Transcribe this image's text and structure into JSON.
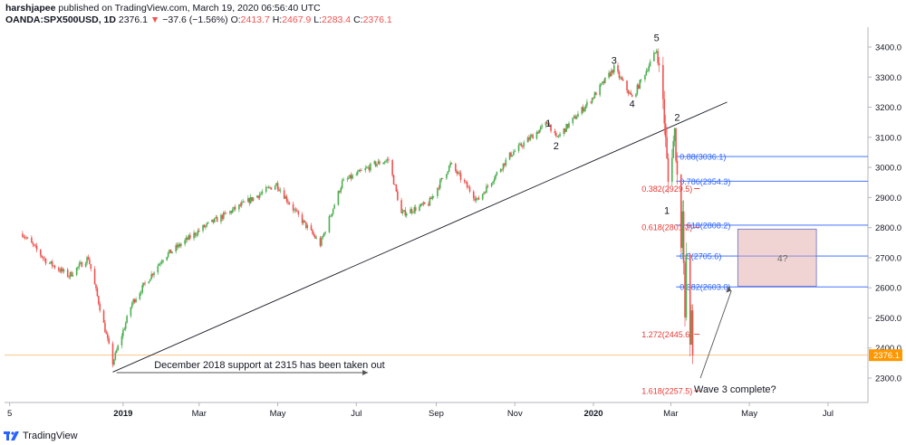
{
  "header": {
    "author": "harshjapee",
    "published_text": "published on TradingView.com, March 19, 2020 06:56:40 UTC",
    "symbol": "OANDA:SPX500USD, 1D",
    "last": "2376.1",
    "change_arrow": "▼",
    "change": "−37.6 (−1.56%)",
    "open_label": "O:",
    "open": "2413.7",
    "high_label": "H:",
    "high": "2467.9",
    "low_label": "L:",
    "low": "2283.4",
    "close_label": "C:",
    "close": "2376.1"
  },
  "footer": {
    "brand": "TradingView"
  },
  "colors": {
    "up": "#26a69a",
    "up_green": "#4caf50",
    "down": "#ef5350",
    "fib_red": "#e53935",
    "fib_blue": "#2962ff",
    "price_tag": "#ff9800"
  },
  "chart_data": {
    "type": "candlestick",
    "y_axis": {
      "min": 2250,
      "max": 3450,
      "ticks": [
        2300,
        2400,
        2500,
        2600,
        2700,
        2800,
        2900,
        3000,
        3100,
        3200,
        3300,
        3400
      ],
      "tick_labels": [
        "2300.0",
        "2400.0",
        "2500.0",
        "2600.0",
        "2700.0",
        "2800.0",
        "2900.0",
        "3000.0",
        "3100.0",
        "3200.0",
        "3300.0",
        "3400.0"
      ]
    },
    "x_axis": {
      "labels": [
        "5",
        "2019",
        "Mar",
        "May",
        "Jul",
        "Sep",
        "Nov",
        "2020",
        "Mar",
        "May",
        "Jul"
      ]
    },
    "anchors": [
      {
        "date": "2018-10-15",
        "price": 2780
      },
      {
        "date": "2018-11-02",
        "price": 2690
      },
      {
        "date": "2018-11-20",
        "price": 2640
      },
      {
        "date": "2018-12-05",
        "price": 2700
      },
      {
        "date": "2018-12-24",
        "price": 2350
      },
      {
        "date": "2019-01-08",
        "price": 2550
      },
      {
        "date": "2019-02-01",
        "price": 2700
      },
      {
        "date": "2019-03-04",
        "price": 2800
      },
      {
        "date": "2019-04-01",
        "price": 2870
      },
      {
        "date": "2019-04-30",
        "price": 2945
      },
      {
        "date": "2019-05-15",
        "price": 2850
      },
      {
        "date": "2019-06-03",
        "price": 2745
      },
      {
        "date": "2019-06-20",
        "price": 2950
      },
      {
        "date": "2019-07-15",
        "price": 3010
      },
      {
        "date": "2019-07-26",
        "price": 3025
      },
      {
        "date": "2019-08-05",
        "price": 2845
      },
      {
        "date": "2019-08-26",
        "price": 2880
      },
      {
        "date": "2019-09-12",
        "price": 3010
      },
      {
        "date": "2019-10-03",
        "price": 2890
      },
      {
        "date": "2019-10-28",
        "price": 3040
      },
      {
        "date": "2019-11-27",
        "price": 3150
      },
      {
        "date": "2019-12-03",
        "price": 3095
      },
      {
        "date": "2019-12-31",
        "price": 3230
      },
      {
        "date": "2020-01-17",
        "price": 3330
      },
      {
        "date": "2020-01-31",
        "price": 3230
      },
      {
        "date": "2020-02-19",
        "price": 3390
      },
      {
        "date": "2020-02-24",
        "price": 3225
      },
      {
        "date": "2020-02-28",
        "price": 2950
      },
      {
        "date": "2020-03-04",
        "price": 3120
      },
      {
        "date": "2020-03-09",
        "price": 2750
      },
      {
        "date": "2020-03-10",
        "price": 2880
      },
      {
        "date": "2020-03-12",
        "price": 2480
      },
      {
        "date": "2020-03-13",
        "price": 2710
      },
      {
        "date": "2020-03-16",
        "price": 2390
      },
      {
        "date": "2020-03-17",
        "price": 2530
      },
      {
        "date": "2020-03-18",
        "price": 2376.1
      }
    ],
    "trendline": {
      "from": {
        "date": "2018-12-24",
        "price": 2320
      },
      "to": {
        "date": "2020-03-18",
        "price": 3205
      }
    },
    "support_line": {
      "price": 2376.1
    },
    "wave_labels": [
      {
        "text": "5",
        "date": "2020-02-19",
        "price": 3420
      },
      {
        "text": "3",
        "date": "2020-01-17",
        "price": 3345
      },
      {
        "text": "4",
        "date": "2020-01-31",
        "price": 3200
      },
      {
        "text": "1",
        "date": "2019-11-27",
        "price": 3135
      },
      {
        "text": "2",
        "date": "2019-12-03",
        "price": 3060
      },
      {
        "text": "2",
        "date": "2020-03-06",
        "price": 3155
      },
      {
        "text": "1",
        "date": "2020-02-27",
        "price": 2845
      }
    ],
    "fib_red": [
      {
        "text": "0.382(2929.5)",
        "price": 2929.5
      },
      {
        "text": "0.618(2801.2)",
        "price": 2801.2
      },
      {
        "text": "1.272(2445.6)",
        "price": 2445.6
      },
      {
        "text": "1.618(2257.5)",
        "price": 2257.5
      }
    ],
    "fib_blue": [
      {
        "text": "0.88(3036.1)",
        "price": 3036.1
      },
      {
        "text": "0.786(2954.3)",
        "price": 2954.3
      },
      {
        "text": "0.618(2808.2)",
        "price": 2808.2
      },
      {
        "text": "0.5(2705.6)",
        "price": 2705.6
      },
      {
        "text": "0.382(2603.0)",
        "price": 2603.0
      }
    ],
    "wave4_box": {
      "label": "4?",
      "top": 2795,
      "bottom": 2605
    },
    "annotations": {
      "support_text": "December 2018 support at 2315 has been taken out",
      "wave3_text": "Wave 3 complete?"
    },
    "last_price_tag": "2376.1"
  }
}
